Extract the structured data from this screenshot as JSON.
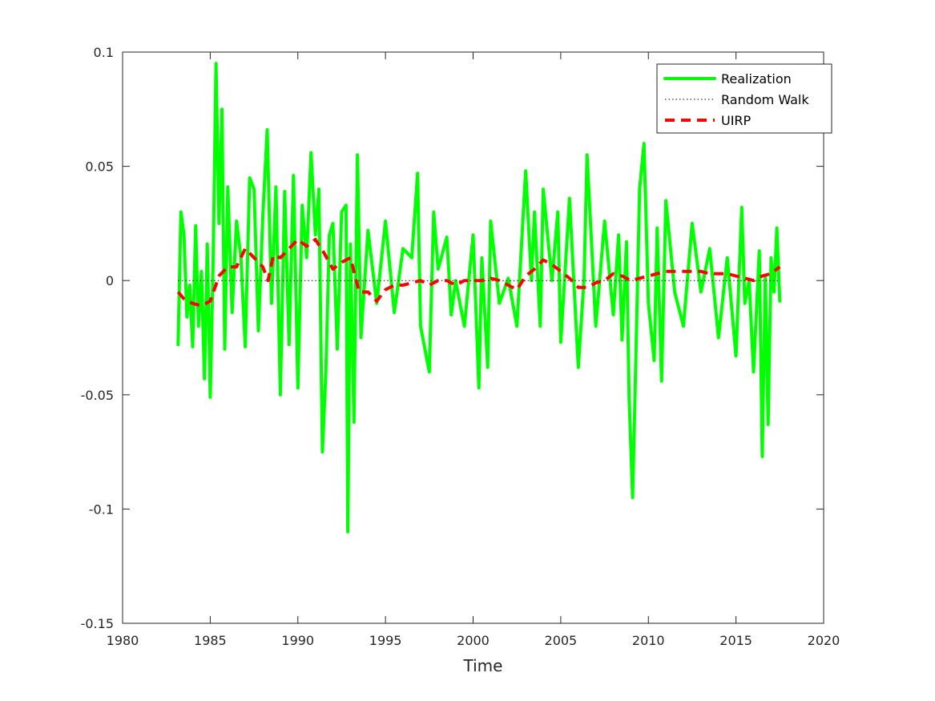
{
  "chart_data": {
    "type": "line",
    "title": "",
    "xlabel": "Time",
    "ylabel": "",
    "xlim": [
      1980,
      2020
    ],
    "ylim": [
      -0.15,
      0.1
    ],
    "x_ticks": [
      1980,
      1985,
      1990,
      1995,
      2000,
      2005,
      2010,
      2015,
      2020
    ],
    "x_tick_labels": [
      "1980",
      "1985",
      "1990",
      "1995",
      "2000",
      "2005",
      "2010",
      "2015",
      "2020"
    ],
    "y_ticks": [
      0.1,
      0.05,
      0,
      -0.05,
      -0.1,
      -0.15
    ],
    "y_tick_labels": [
      "0.1",
      "0.05",
      "0",
      "-0.05",
      "-0.1",
      "-0.15"
    ],
    "grid": false,
    "legend_position": "top-right",
    "series": [
      {
        "name": "Realization",
        "color": "#00ff00",
        "style": "solid",
        "x": [
          1983.17,
          1983.33,
          1983.5,
          1983.67,
          1983.83,
          1984.0,
          1984.17,
          1984.33,
          1984.5,
          1984.67,
          1984.83,
          1985.0,
          1985.17,
          1985.33,
          1985.5,
          1985.67,
          1985.83,
          1986.0,
          1986.25,
          1986.5,
          1986.75,
          1987.0,
          1987.25,
          1987.5,
          1987.75,
          1988.0,
          1988.25,
          1988.5,
          1988.75,
          1989.0,
          1989.25,
          1989.5,
          1989.75,
          1990.0,
          1990.25,
          1990.5,
          1990.75,
          1991.0,
          1991.2,
          1991.4,
          1991.6,
          1991.8,
          1992.0,
          1992.25,
          1992.5,
          1992.75,
          1992.85,
          1993.0,
          1993.2,
          1993.4,
          1993.6,
          1994.0,
          1994.5,
          1995.0,
          1995.5,
          1996.0,
          1996.5,
          1996.83,
          1997.0,
          1997.5,
          1997.75,
          1998.0,
          1998.5,
          1998.75,
          1999.0,
          1999.5,
          2000.0,
          2000.33,
          2000.5,
          2000.83,
          2001.0,
          2001.5,
          2002.0,
          2002.5,
          2003.0,
          2003.33,
          2003.5,
          2003.83,
          2004.0,
          2004.5,
          2004.83,
          2005.0,
          2005.5,
          2006.0,
          2006.33,
          2006.5,
          2007.0,
          2007.5,
          2008.0,
          2008.3,
          2008.5,
          2008.75,
          2008.9,
          2009.1,
          2009.3,
          2009.5,
          2009.75,
          2010.0,
          2010.33,
          2010.5,
          2010.75,
          2011.0,
          2011.5,
          2012.0,
          2012.5,
          2013.0,
          2013.5,
          2014.0,
          2014.5,
          2015.0,
          2015.33,
          2015.5,
          2015.75,
          2016.0,
          2016.33,
          2016.5,
          2016.67,
          2016.83,
          2017.0,
          2017.17,
          2017.33,
          2017.5
        ],
        "values": [
          -0.028,
          0.03,
          0.02,
          -0.016,
          -0.002,
          -0.029,
          0.024,
          -0.02,
          0.004,
          -0.043,
          0.016,
          -0.051,
          0.01,
          0.095,
          0.025,
          0.075,
          -0.03,
          0.041,
          -0.014,
          0.026,
          0.01,
          -0.029,
          0.045,
          0.04,
          -0.022,
          0.028,
          0.066,
          -0.01,
          0.041,
          -0.05,
          0.039,
          -0.028,
          0.046,
          -0.047,
          0.033,
          0.01,
          0.056,
          0.02,
          0.04,
          -0.075,
          -0.04,
          0.02,
          0.025,
          -0.03,
          0.03,
          0.033,
          -0.11,
          0.016,
          -0.062,
          0.055,
          -0.025,
          0.022,
          -0.01,
          0.026,
          -0.014,
          0.014,
          0.01,
          0.047,
          -0.02,
          -0.04,
          0.03,
          0.005,
          0.019,
          -0.015,
          0.0,
          -0.02,
          0.02,
          -0.047,
          0.01,
          -0.038,
          0.026,
          -0.01,
          0.001,
          -0.02,
          0.048,
          0.0,
          0.03,
          -0.02,
          0.04,
          0.0,
          0.03,
          -0.027,
          0.036,
          -0.038,
          0.001,
          0.055,
          -0.02,
          0.026,
          -0.015,
          0.02,
          -0.026,
          0.017,
          -0.051,
          -0.095,
          -0.03,
          0.04,
          0.06,
          -0.01,
          -0.035,
          0.023,
          -0.044,
          0.035,
          -0.005,
          -0.02,
          0.025,
          -0.005,
          0.014,
          -0.025,
          0.01,
          -0.033,
          0.032,
          -0.01,
          0.0,
          -0.04,
          0.013,
          -0.077,
          0.002,
          -0.063,
          0.01,
          -0.005,
          0.023,
          -0.009
        ]
      },
      {
        "name": "Random Walk",
        "color": "#000000",
        "style": "dotted",
        "x": [
          1983.17,
          2017.5
        ],
        "values": [
          0,
          0
        ]
      },
      {
        "name": "UIRP",
        "color": "#ff0000",
        "style": "dashed",
        "x": [
          1983.17,
          1983.5,
          1984.0,
          1984.5,
          1985.0,
          1985.5,
          1986.0,
          1986.5,
          1987.0,
          1987.5,
          1988.0,
          1988.3,
          1988.6,
          1989.0,
          1989.5,
          1990.0,
          1990.5,
          1991.0,
          1991.5,
          1992.0,
          1992.5,
          1993.0,
          1993.5,
          1994.0,
          1994.5,
          1995.0,
          1995.5,
          1996.0,
          1996.5,
          1997.0,
          1997.5,
          1998.0,
          1998.5,
          1999.0,
          1999.5,
          2000.0,
          2000.5,
          2001.0,
          2001.5,
          2002.0,
          2002.5,
          2003.0,
          2003.5,
          2004.0,
          2004.5,
          2005.0,
          2005.5,
          2006.0,
          2006.5,
          2007.0,
          2007.5,
          2008.0,
          2008.5,
          2009.0,
          2009.5,
          2010.0,
          2010.5,
          2011.0,
          2011.5,
          2012.0,
          2012.5,
          2013.0,
          2013.5,
          2014.0,
          2014.5,
          2015.0,
          2015.5,
          2016.0,
          2016.5,
          2017.0,
          2017.5
        ],
        "values": [
          -0.005,
          -0.008,
          -0.01,
          -0.011,
          -0.009,
          0.002,
          0.006,
          0.006,
          0.014,
          0.01,
          0.006,
          0.0,
          0.011,
          0.01,
          0.014,
          0.018,
          0.015,
          0.018,
          0.012,
          0.005,
          0.008,
          0.01,
          -0.005,
          -0.005,
          -0.009,
          -0.004,
          -0.002,
          -0.002,
          -0.001,
          0.0,
          -0.002,
          0.0,
          0.0,
          -0.002,
          0.0,
          0.0,
          0.0,
          0.001,
          0.0,
          -0.002,
          -0.004,
          0.002,
          0.005,
          0.009,
          0.007,
          0.004,
          0.001,
          -0.003,
          -0.003,
          -0.001,
          0.0,
          0.003,
          0.002,
          0.0,
          0.001,
          0.002,
          0.003,
          0.004,
          0.004,
          0.004,
          0.004,
          0.004,
          0.003,
          0.003,
          0.003,
          0.002,
          0.001,
          0.0,
          0.002,
          0.003,
          0.006
        ]
      }
    ]
  }
}
